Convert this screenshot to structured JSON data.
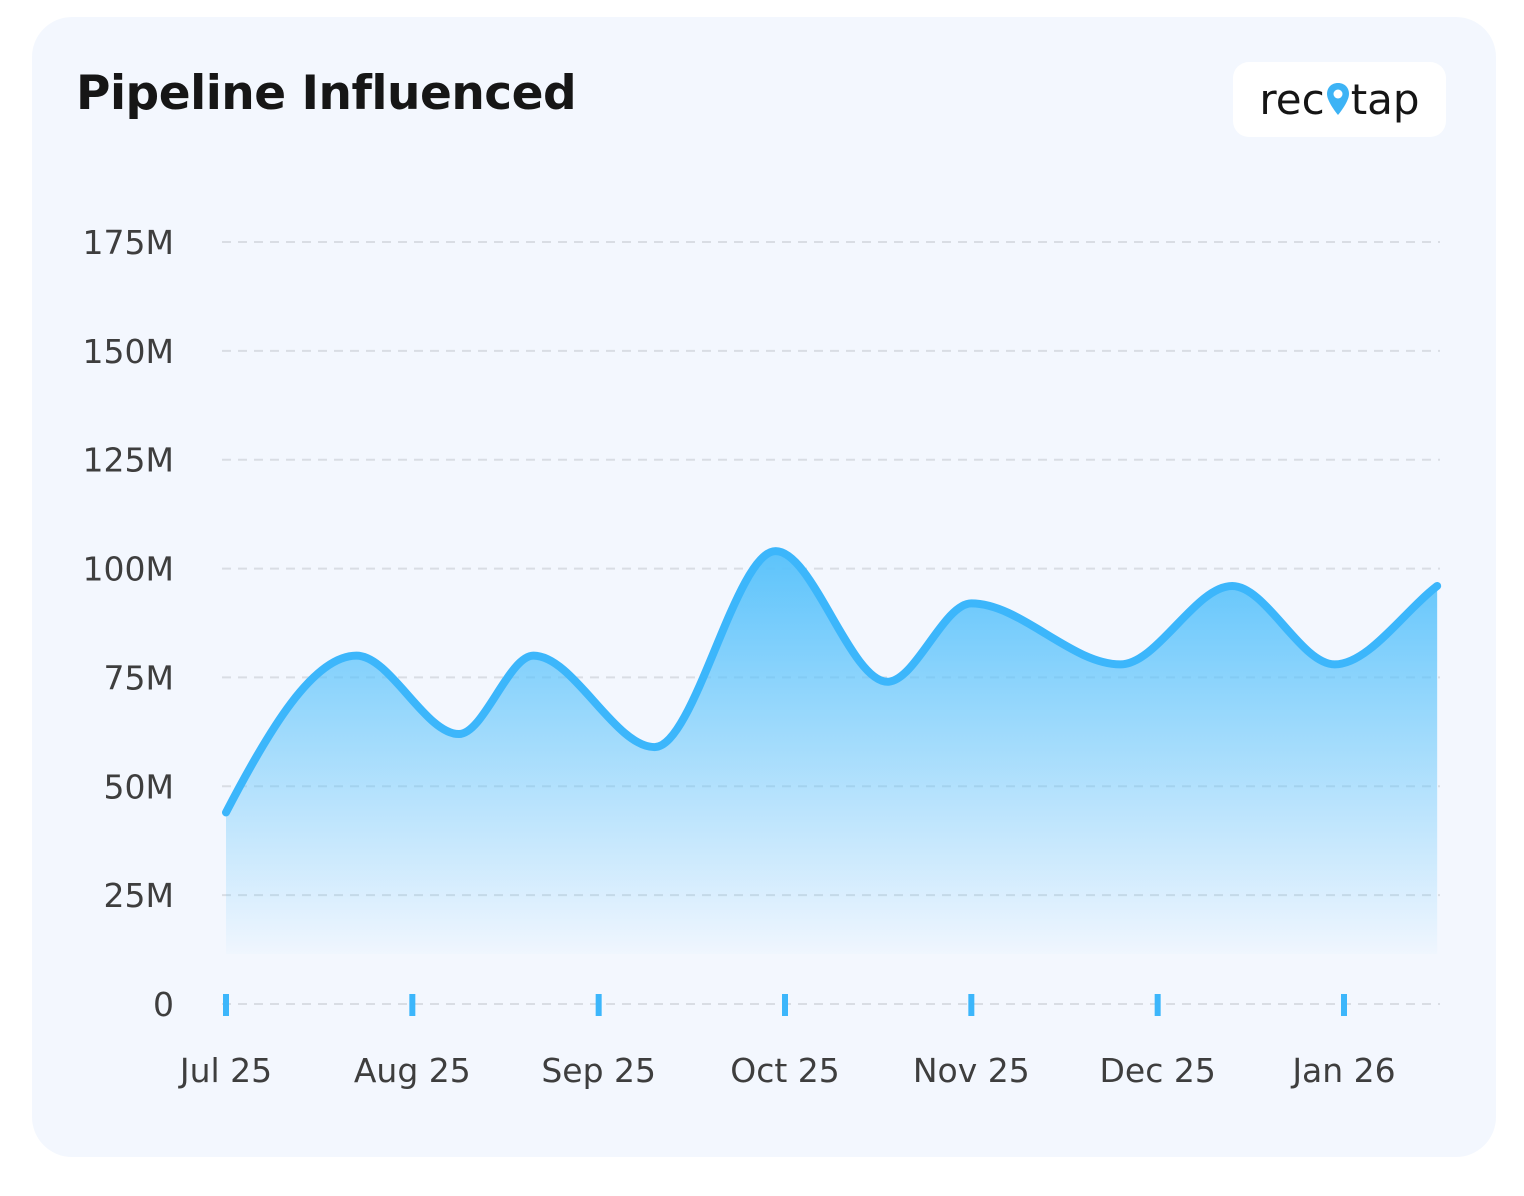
{
  "title": "Pipeline Influenced",
  "logo": {
    "text_before": "rec",
    "text_after": "tap",
    "icon": "map-pin-icon",
    "accent": "#3db3f5"
  },
  "colors": {
    "line": "#3cb6fb",
    "fill_top": "#5bc3fb",
    "tick_marks": "#3cb6fb"
  },
  "chart_data": {
    "type": "area",
    "title": "Pipeline Influenced",
    "xlabel": "",
    "ylabel": "",
    "ylim": [
      0,
      175
    ],
    "y_ticks": [
      0,
      25,
      50,
      75,
      100,
      125,
      150,
      175
    ],
    "y_tick_labels": [
      "0",
      "25M",
      "50M",
      "75M",
      "100M",
      "125M",
      "150M",
      "175M"
    ],
    "x_tick_labels": [
      "Jul 25",
      "Aug 25",
      "Sep 25",
      "Oct 25",
      "Nov 25",
      "Dec 25",
      "Jan 26"
    ],
    "x_ticks": [
      0,
      1,
      2,
      3,
      4,
      5,
      6
    ],
    "grid": "horizontal-dashed",
    "legend": "none",
    "series": [
      {
        "x": [
          0,
          0.7,
          1.25,
          1.65,
          2.3,
          2.95,
          3.55,
          4.0,
          4.8,
          5.4,
          5.95,
          6.5
        ],
        "values": [
          44,
          80,
          62,
          80,
          59,
          104,
          74,
          92,
          78,
          96,
          78,
          96
        ]
      }
    ]
  }
}
